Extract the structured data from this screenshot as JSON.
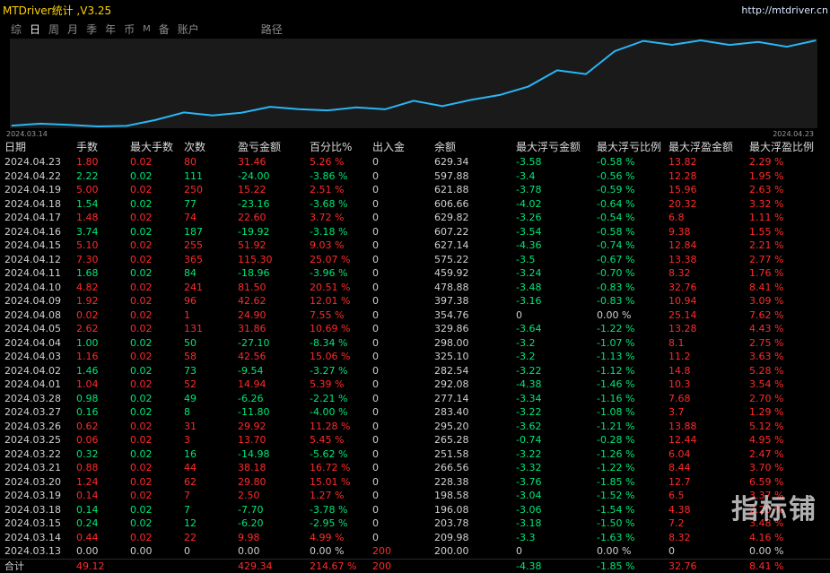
{
  "app": {
    "title": "MTDriver统计 ,V3.25",
    "url": "http://mtdriver.cn"
  },
  "tabs": [
    {
      "label": "综",
      "active": false
    },
    {
      "label": "日",
      "active": true
    },
    {
      "label": "周",
      "active": false
    },
    {
      "label": "月",
      "active": false
    },
    {
      "label": "季",
      "active": false
    },
    {
      "label": "年",
      "active": false
    },
    {
      "label": "币",
      "active": false
    },
    {
      "label": "M",
      "active": false
    },
    {
      "label": "备",
      "active": false
    },
    {
      "label": "账户",
      "active": false
    },
    {
      "label": "路径",
      "active": false
    }
  ],
  "chart_data": {
    "type": "line",
    "x_start_label": "2024.03.14",
    "x_end_label": "2024.04.23",
    "x": [
      "2024.03.13",
      "2024.03.14",
      "2024.03.15",
      "2024.03.18",
      "2024.03.19",
      "2024.03.20",
      "2024.03.21",
      "2024.03.22",
      "2024.03.25",
      "2024.03.26",
      "2024.03.27",
      "2024.03.28",
      "2024.04.01",
      "2024.04.02",
      "2024.04.03",
      "2024.04.04",
      "2024.04.05",
      "2024.04.08",
      "2024.04.09",
      "2024.04.10",
      "2024.04.11",
      "2024.04.12",
      "2024.04.15",
      "2024.04.16",
      "2024.04.17",
      "2024.04.18",
      "2024.04.19",
      "2024.04.22",
      "2024.04.23"
    ],
    "values": [
      200.0,
      209.98,
      203.78,
      196.08,
      198.58,
      228.38,
      266.56,
      251.58,
      265.28,
      295.2,
      283.4,
      277.14,
      292.08,
      282.54,
      325.1,
      298.0,
      329.86,
      354.76,
      397.38,
      478.88,
      459.92,
      575.22,
      627.14,
      607.22,
      629.82,
      606.66,
      621.88,
      597.88,
      629.34
    ],
    "color": "#29b6f6"
  },
  "table": {
    "headers": [
      "日期",
      "手数",
      "最大手数",
      "次数",
      "盈亏金额",
      "百分比%",
      "出入金",
      "余额",
      "最大浮亏金额",
      "最大浮亏比例",
      "最大浮盈金额",
      "最大浮盈比例"
    ],
    "rows": [
      [
        "2024.04.23",
        "1.80",
        "0.02",
        "80",
        "31.46",
        "5.26 %",
        "0",
        "629.34",
        "-3.58",
        "-0.58 %",
        "13.82",
        "2.29 %"
      ],
      [
        "2024.04.22",
        "2.22",
        "0.02",
        "111",
        "-24.00",
        "-3.86 %",
        "0",
        "597.88",
        "-3.4",
        "-0.56 %",
        "12.28",
        "1.95 %"
      ],
      [
        "2024.04.19",
        "5.00",
        "0.02",
        "250",
        "15.22",
        "2.51 %",
        "0",
        "621.88",
        "-3.78",
        "-0.59 %",
        "15.96",
        "2.63 %"
      ],
      [
        "2024.04.18",
        "1.54",
        "0.02",
        "77",
        "-23.16",
        "-3.68 %",
        "0",
        "606.66",
        "-4.02",
        "-0.64 %",
        "20.32",
        "3.32 %"
      ],
      [
        "2024.04.17",
        "1.48",
        "0.02",
        "74",
        "22.60",
        "3.72 %",
        "0",
        "629.82",
        "-3.26",
        "-0.54 %",
        "6.8",
        "1.11 %"
      ],
      [
        "2024.04.16",
        "3.74",
        "0.02",
        "187",
        "-19.92",
        "-3.18 %",
        "0",
        "607.22",
        "-3.54",
        "-0.58 %",
        "9.38",
        "1.55 %"
      ],
      [
        "2024.04.15",
        "5.10",
        "0.02",
        "255",
        "51.92",
        "9.03 %",
        "0",
        "627.14",
        "-4.36",
        "-0.74 %",
        "12.84",
        "2.21 %"
      ],
      [
        "2024.04.12",
        "7.30",
        "0.02",
        "365",
        "115.30",
        "25.07 %",
        "0",
        "575.22",
        "-3.5",
        "-0.67 %",
        "13.38",
        "2.77 %"
      ],
      [
        "2024.04.11",
        "1.68",
        "0.02",
        "84",
        "-18.96",
        "-3.96 %",
        "0",
        "459.92",
        "-3.24",
        "-0.70 %",
        "8.32",
        "1.76 %"
      ],
      [
        "2024.04.10",
        "4.82",
        "0.02",
        "241",
        "81.50",
        "20.51 %",
        "0",
        "478.88",
        "-3.48",
        "-0.83 %",
        "32.76",
        "8.41 %"
      ],
      [
        "2024.04.09",
        "1.92",
        "0.02",
        "96",
        "42.62",
        "12.01 %",
        "0",
        "397.38",
        "-3.16",
        "-0.83 %",
        "10.94",
        "3.09 %"
      ],
      [
        "2024.04.08",
        "0.02",
        "0.02",
        "1",
        "24.90",
        "7.55 %",
        "0",
        "354.76",
        "0",
        "0.00 %",
        "25.14",
        "7.62 %"
      ],
      [
        "2024.04.05",
        "2.62",
        "0.02",
        "131",
        "31.86",
        "10.69 %",
        "0",
        "329.86",
        "-3.64",
        "-1.22 %",
        "13.28",
        "4.43 %"
      ],
      [
        "2024.04.04",
        "1.00",
        "0.02",
        "50",
        "-27.10",
        "-8.34 %",
        "0",
        "298.00",
        "-3.2",
        "-1.07 %",
        "8.1",
        "2.75 %"
      ],
      [
        "2024.04.03",
        "1.16",
        "0.02",
        "58",
        "42.56",
        "15.06 %",
        "0",
        "325.10",
        "-3.2",
        "-1.13 %",
        "11.2",
        "3.63 %"
      ],
      [
        "2024.04.02",
        "1.46",
        "0.02",
        "73",
        "-9.54",
        "-3.27 %",
        "0",
        "282.54",
        "-3.22",
        "-1.12 %",
        "14.8",
        "5.28 %"
      ],
      [
        "2024.04.01",
        "1.04",
        "0.02",
        "52",
        "14.94",
        "5.39 %",
        "0",
        "292.08",
        "-4.38",
        "-1.46 %",
        "10.3",
        "3.54 %"
      ],
      [
        "2024.03.28",
        "0.98",
        "0.02",
        "49",
        "-6.26",
        "-2.21 %",
        "0",
        "277.14",
        "-3.34",
        "-1.16 %",
        "7.68",
        "2.70 %"
      ],
      [
        "2024.03.27",
        "0.16",
        "0.02",
        "8",
        "-11.80",
        "-4.00 %",
        "0",
        "283.40",
        "-3.22",
        "-1.08 %",
        "3.7",
        "1.29 %"
      ],
      [
        "2024.03.26",
        "0.62",
        "0.02",
        "31",
        "29.92",
        "11.28 %",
        "0",
        "295.20",
        "-3.62",
        "-1.21 %",
        "13.88",
        "5.12 %"
      ],
      [
        "2024.03.25",
        "0.06",
        "0.02",
        "3",
        "13.70",
        "5.45 %",
        "0",
        "265.28",
        "-0.74",
        "-0.28 %",
        "12.44",
        "4.95 %"
      ],
      [
        "2024.03.22",
        "0.32",
        "0.02",
        "16",
        "-14.98",
        "-5.62 %",
        "0",
        "251.58",
        "-3.22",
        "-1.26 %",
        "6.04",
        "2.47 %"
      ],
      [
        "2024.03.21",
        "0.88",
        "0.02",
        "44",
        "38.18",
        "16.72 %",
        "0",
        "266.56",
        "-3.32",
        "-1.22 %",
        "8.44",
        "3.70 %"
      ],
      [
        "2024.03.20",
        "1.24",
        "0.02",
        "62",
        "29.80",
        "15.01 %",
        "0",
        "228.38",
        "-3.76",
        "-1.85 %",
        "12.7",
        "6.59 %"
      ],
      [
        "2024.03.19",
        "0.14",
        "0.02",
        "7",
        "2.50",
        "1.27 %",
        "0",
        "198.58",
        "-3.04",
        "-1.52 %",
        "6.5",
        "3.37 %"
      ],
      [
        "2024.03.18",
        "0.14",
        "0.02",
        "7",
        "-7.70",
        "-3.78 %",
        "0",
        "196.08",
        "-3.06",
        "-1.54 %",
        "4.38",
        "2.20 %"
      ],
      [
        "2024.03.15",
        "0.24",
        "0.02",
        "12",
        "-6.20",
        "-2.95 %",
        "0",
        "203.78",
        "-3.18",
        "-1.50 %",
        "7.2",
        "3.48 %"
      ],
      [
        "2024.03.14",
        "0.44",
        "0.02",
        "22",
        "9.98",
        "4.99 %",
        "0",
        "209.98",
        "-3.3",
        "-1.63 %",
        "8.32",
        "4.16 %"
      ],
      [
        "2024.03.13",
        "0.00",
        "0.00",
        "0",
        "0.00",
        "0.00 %",
        "200",
        "200.00",
        "0",
        "0.00 %",
        "0",
        "0.00 %"
      ]
    ],
    "footer": [
      "合计",
      "49.12",
      "",
      "",
      "429.34",
      "214.67 %",
      "200",
      "",
      "-4.38",
      "-1.85 %",
      "32.76",
      "8.41 %"
    ]
  },
  "watermark": "指标铺",
  "colors": {
    "positive": "#ff2a2a",
    "negative": "#00e676",
    "neutral": "#d0d0d0",
    "line": "#29b6f6",
    "title": "#ffd400"
  }
}
